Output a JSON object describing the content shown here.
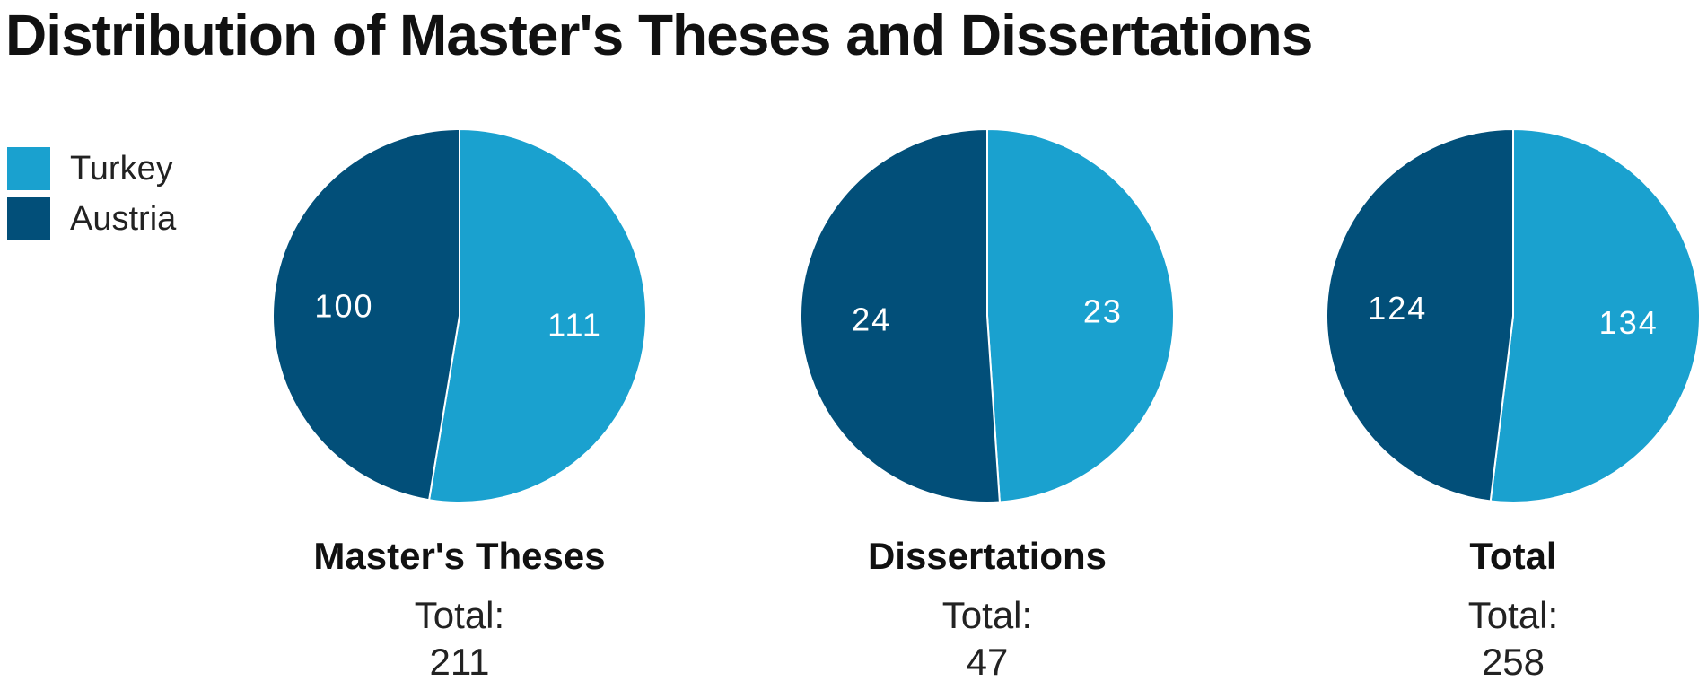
{
  "title": "Distribution of Master's Theses and Dissertations",
  "legend": [
    {
      "label": "Turkey",
      "color": "#1aa1cf"
    },
    {
      "label": "Austria",
      "color": "#024f79"
    }
  ],
  "chart_data": [
    {
      "type": "pie",
      "title": "Master's Theses",
      "total_label": "Total:",
      "total": "211",
      "slices": [
        {
          "label": "Turkey",
          "value": 111,
          "color": "#1aa1cf"
        },
        {
          "label": "Austria",
          "value": 100,
          "color": "#024f79"
        }
      ]
    },
    {
      "type": "pie",
      "title": "Dissertations",
      "total_label": "Total:",
      "total": "47",
      "slices": [
        {
          "label": "Turkey",
          "value": 23,
          "color": "#1aa1cf"
        },
        {
          "label": "Austria",
          "value": 24,
          "color": "#024f79"
        }
      ]
    },
    {
      "type": "pie",
      "title": "Total",
      "total_label": "Total:",
      "total": "258",
      "slices": [
        {
          "label": "Turkey",
          "value": 134,
          "color": "#1aa1cf"
        },
        {
          "label": "Austria",
          "value": 124,
          "color": "#024f79"
        }
      ]
    }
  ]
}
